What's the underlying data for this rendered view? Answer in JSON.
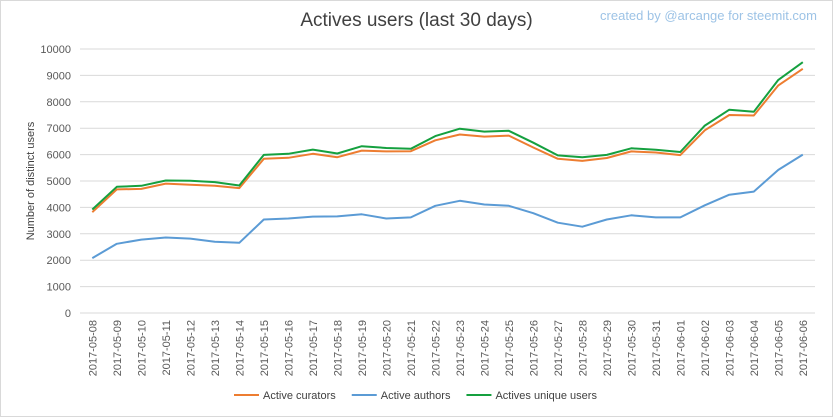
{
  "watermark": "created by @arcange for steemit.com",
  "chart_data": {
    "type": "line",
    "title": "Actives users (last 30 days)",
    "xlabel": "",
    "ylabel": "Number  of  distinct users",
    "ylim": [
      0,
      10000
    ],
    "yticks": [
      0,
      1000,
      2000,
      3000,
      4000,
      5000,
      6000,
      7000,
      8000,
      9000,
      10000
    ],
    "grid": true,
    "legend_position": "bottom",
    "categories": [
      "2017-05-08",
      "2017-05-09",
      "2017-05-10",
      "2017-05-11",
      "2017-05-12",
      "2017-05-13",
      "2017-05-14",
      "2017-05-15",
      "2017-05-16",
      "2017-05-17",
      "2017-05-18",
      "2017-05-19",
      "2017-05-20",
      "2017-05-21",
      "2017-05-22",
      "2017-05-23",
      "2017-05-24",
      "2017-05-25",
      "2017-05-26",
      "2017-05-27",
      "2017-05-28",
      "2017-05-29",
      "2017-05-30",
      "2017-05-31",
      "2017-06-01",
      "2017-06-02",
      "2017-06-03",
      "2017-06-04",
      "2017-06-05",
      "2017-06-06"
    ],
    "series": [
      {
        "name": "Active curators",
        "color": "#ed7d31",
        "values": [
          3820,
          4680,
          4700,
          4900,
          4860,
          4820,
          4730,
          5840,
          5880,
          6030,
          5900,
          6150,
          6120,
          6130,
          6540,
          6760,
          6680,
          6720,
          6270,
          5840,
          5760,
          5870,
          6120,
          6080,
          5980,
          6920,
          7500,
          7480,
          8620,
          9250
        ]
      },
      {
        "name": "Active authors",
        "color": "#5b9bd5",
        "values": [
          2080,
          2620,
          2780,
          2860,
          2820,
          2700,
          2660,
          3540,
          3580,
          3650,
          3660,
          3740,
          3580,
          3620,
          4060,
          4250,
          4110,
          4060,
          3780,
          3420,
          3270,
          3540,
          3700,
          3620,
          3620,
          4080,
          4480,
          4600,
          5420,
          6000
        ]
      },
      {
        "name": "Actives unique users",
        "color": "#15a03f",
        "values": [
          3920,
          4780,
          4820,
          5020,
          5010,
          4960,
          4830,
          5990,
          6030,
          6190,
          6040,
          6320,
          6250,
          6220,
          6700,
          6980,
          6870,
          6900,
          6450,
          5970,
          5900,
          5990,
          6240,
          6180,
          6100,
          7100,
          7700,
          7620,
          8830,
          9500
        ]
      }
    ]
  }
}
